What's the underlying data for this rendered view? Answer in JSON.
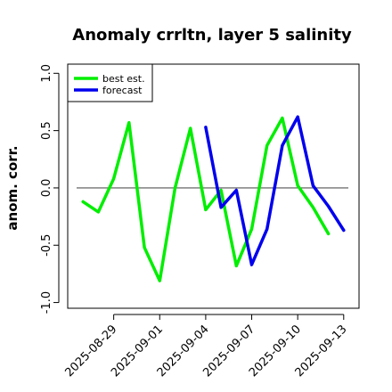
{
  "chart_data": {
    "type": "line",
    "title": "Anomaly crrltn, layer 5 salinity",
    "xlabel": "",
    "ylabel": "anom. corr.",
    "ylim": [
      -1.05,
      1.08
    ],
    "yticks": [
      -1.0,
      -0.5,
      0.0,
      0.5,
      1.0
    ],
    "ytick_labels": [
      "-1.0",
      "-0.5",
      "0.0",
      "0.5",
      "1.0"
    ],
    "xticks": [
      "2025-08-29",
      "2025-09-01",
      "2025-09-04",
      "2025-09-07",
      "2025-09-10",
      "2025-09-13"
    ],
    "xtick_colors": [
      "#000000",
      "#000000",
      "#008000",
      "#000000",
      "#000000",
      "#000000"
    ],
    "xlim": [
      "2025-08-26",
      "2025-09-14"
    ],
    "reference_line": 0.0,
    "grid": false,
    "legend_position": "top-left",
    "series": [
      {
        "name": "best est.",
        "color": "#00ee00",
        "x": [
          "2025-08-27",
          "2025-08-28",
          "2025-08-29",
          "2025-08-30",
          "2025-08-31",
          "2025-09-01",
          "2025-09-02",
          "2025-09-03",
          "2025-09-04",
          "2025-09-05",
          "2025-09-06",
          "2025-09-07",
          "2025-09-08",
          "2025-09-09",
          "2025-09-10",
          "2025-09-11",
          "2025-09-12",
          "2025-09-13"
        ],
        "values": [
          -0.12,
          -0.21,
          0.08,
          0.57,
          -0.52,
          -0.81,
          0.0,
          0.52,
          -0.19,
          -0.02,
          -0.68,
          -0.36,
          0.37,
          0.61,
          0.02,
          -0.17,
          -0.4,
          null
        ]
      },
      {
        "name": "forecast",
        "color": "#0000ee",
        "x": [
          "2025-09-04",
          "2025-09-05",
          "2025-09-06",
          "2025-09-07",
          "2025-09-08",
          "2025-09-09",
          "2025-09-10",
          "2025-09-11",
          "2025-09-12",
          "2025-09-13"
        ],
        "values": [
          0.53,
          -0.17,
          -0.02,
          -0.67,
          -0.36,
          0.37,
          0.62,
          0.02,
          -0.16,
          -0.37
        ]
      }
    ]
  }
}
